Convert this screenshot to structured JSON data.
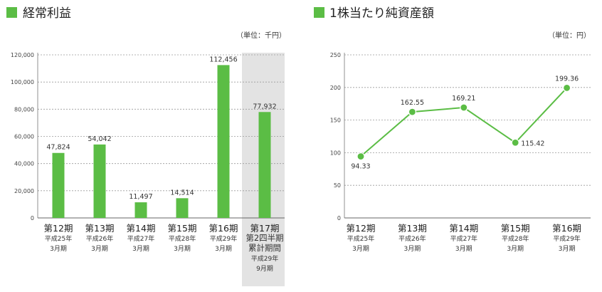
{
  "chart_data": [
    {
      "type": "bar",
      "title": "経常利益",
      "unit_label": "（単位：千円）",
      "accent_color": "#5bbd45",
      "highlight_bg": "#e3e3e3",
      "ylim": [
        0,
        120000
      ],
      "yticks": [
        "120,000",
        "100,000",
        "80,000",
        "60,000",
        "40,000",
        "20,000",
        "0"
      ],
      "ytick_values": [
        120000,
        100000,
        80000,
        60000,
        40000,
        20000,
        0
      ],
      "categories": [
        {
          "period": "第12期",
          "sub": [
            "平成25年",
            "3月期"
          ]
        },
        {
          "period": "第13期",
          "sub": [
            "平成26年",
            "3月期"
          ]
        },
        {
          "period": "第14期",
          "sub": [
            "平成27年",
            "3月期"
          ]
        },
        {
          "period": "第15期",
          "sub": [
            "平成28年",
            "3月期"
          ]
        },
        {
          "period": "第16期",
          "sub": [
            "平成29年",
            "3月期"
          ]
        },
        {
          "period": "第17期",
          "sub": [
            "第2四半期",
            "累計期間",
            "平成29年",
            "9月期"
          ]
        }
      ],
      "values": [
        47824,
        54042,
        11497,
        14514,
        112456,
        77932
      ],
      "value_labels": [
        "47,824",
        "54,042",
        "11,497",
        "14,514",
        "112,456",
        "77,932"
      ],
      "highlight_index": 5
    },
    {
      "type": "line",
      "title": "1株当たり純資産額",
      "unit_label": "（単位：円）",
      "accent_color": "#5bbd45",
      "ylim": [
        0,
        250
      ],
      "yticks": [
        "250",
        "200",
        "150",
        "100",
        "50",
        "0"
      ],
      "ytick_values": [
        250,
        200,
        150,
        100,
        50,
        0
      ],
      "categories": [
        {
          "period": "第12期",
          "sub": [
            "平成25年",
            "3月期"
          ]
        },
        {
          "period": "第13期",
          "sub": [
            "平成26年",
            "3月期"
          ]
        },
        {
          "period": "第14期",
          "sub": [
            "平成27年",
            "3月期"
          ]
        },
        {
          "period": "第15期",
          "sub": [
            "平成28年",
            "3月期"
          ]
        },
        {
          "period": "第16期",
          "sub": [
            "平成29年",
            "3月期"
          ]
        }
      ],
      "values": [
        94.33,
        162.55,
        169.21,
        115.42,
        199.36
      ],
      "value_labels": [
        "94.33",
        "162.55",
        "169.21",
        "115.42",
        "199.36"
      ]
    }
  ]
}
